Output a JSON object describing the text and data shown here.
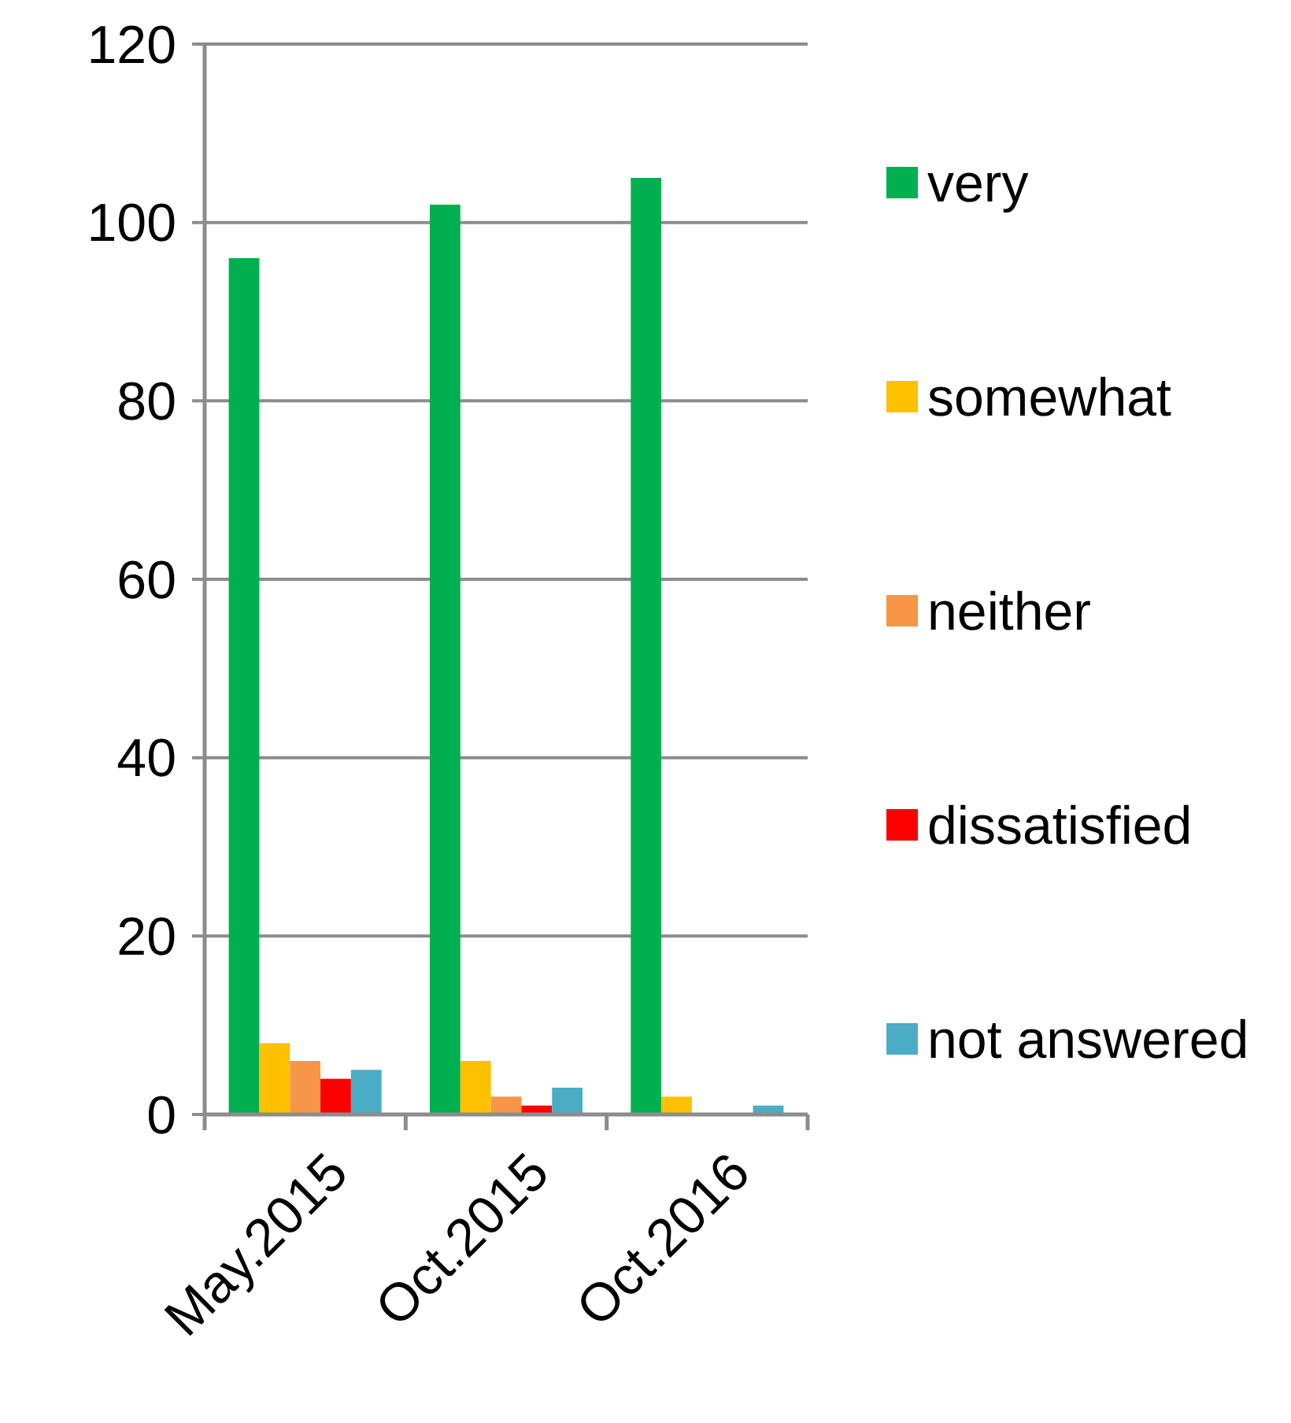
{
  "chart_data": {
    "type": "bar",
    "categories": [
      "May.2015",
      "Oct.2015",
      "Oct.2016"
    ],
    "series": [
      {
        "name": "very",
        "color": "#00b050",
        "values": [
          96,
          102,
          105
        ]
      },
      {
        "name": "somewhat",
        "color": "#ffc000",
        "values": [
          8,
          6,
          2
        ]
      },
      {
        "name": "neither",
        "color": "#f79646",
        "values": [
          6,
          2,
          0
        ]
      },
      {
        "name": "dissatisfied",
        "color": "#ff0000",
        "values": [
          4,
          1,
          0
        ]
      },
      {
        "name": "not answered",
        "color": "#4bacc6",
        "values": [
          5,
          3,
          1
        ]
      }
    ],
    "ylim": [
      0,
      120
    ],
    "yticks": [
      0,
      20,
      40,
      60,
      80,
      100,
      120
    ],
    "grid": "y",
    "legend": "right"
  }
}
